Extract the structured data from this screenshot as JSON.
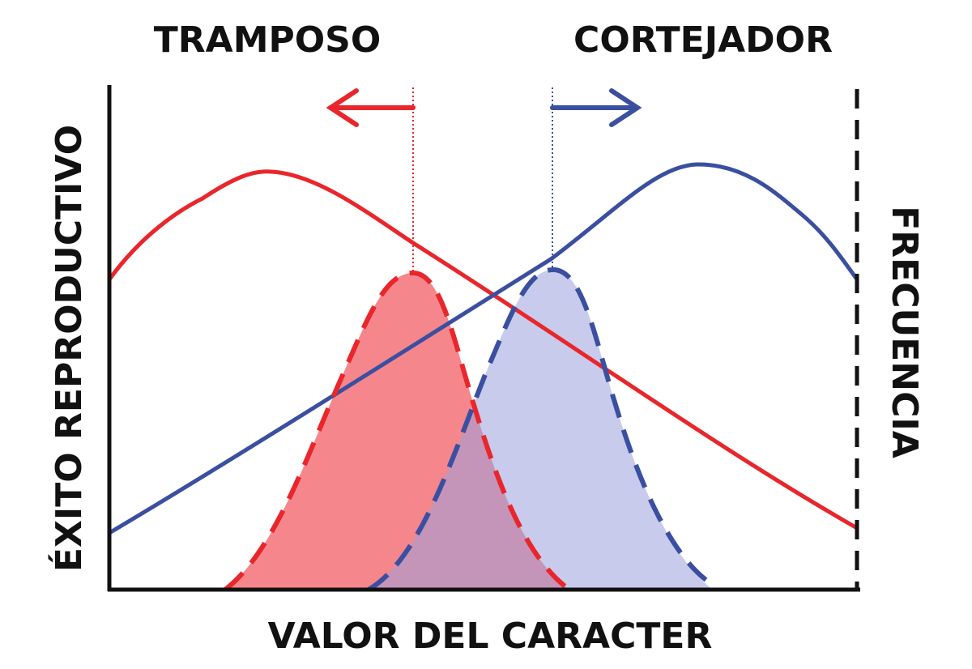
{
  "labels": {
    "top_left": "TRAMPOSO",
    "top_right": "CORTEJADOR",
    "x_axis": "VALOR DEL CARACTER",
    "y_axis_left": "ÉXITO REPRODUCTIVO",
    "y_axis_right": "FRECUENCIA"
  },
  "colors": {
    "red": "#e8262b",
    "blue": "#3b4fa0",
    "red_fill": "#f47a80",
    "blue_fill": "#b9bde6",
    "axis": "#111111"
  },
  "curves": [
    {
      "id": "red-success",
      "style": "solid",
      "color": "red",
      "meaning": "tramposo"
    },
    {
      "id": "blue-success",
      "style": "solid",
      "color": "blue",
      "meaning": "cortejador"
    },
    {
      "id": "red-frequency",
      "style": "dashed-filled",
      "color": "red"
    },
    {
      "id": "blue-frequency",
      "style": "dashed-filled",
      "color": "blue"
    }
  ],
  "arrows": [
    {
      "direction": "left",
      "color": "red"
    },
    {
      "direction": "right",
      "color": "blue"
    }
  ]
}
